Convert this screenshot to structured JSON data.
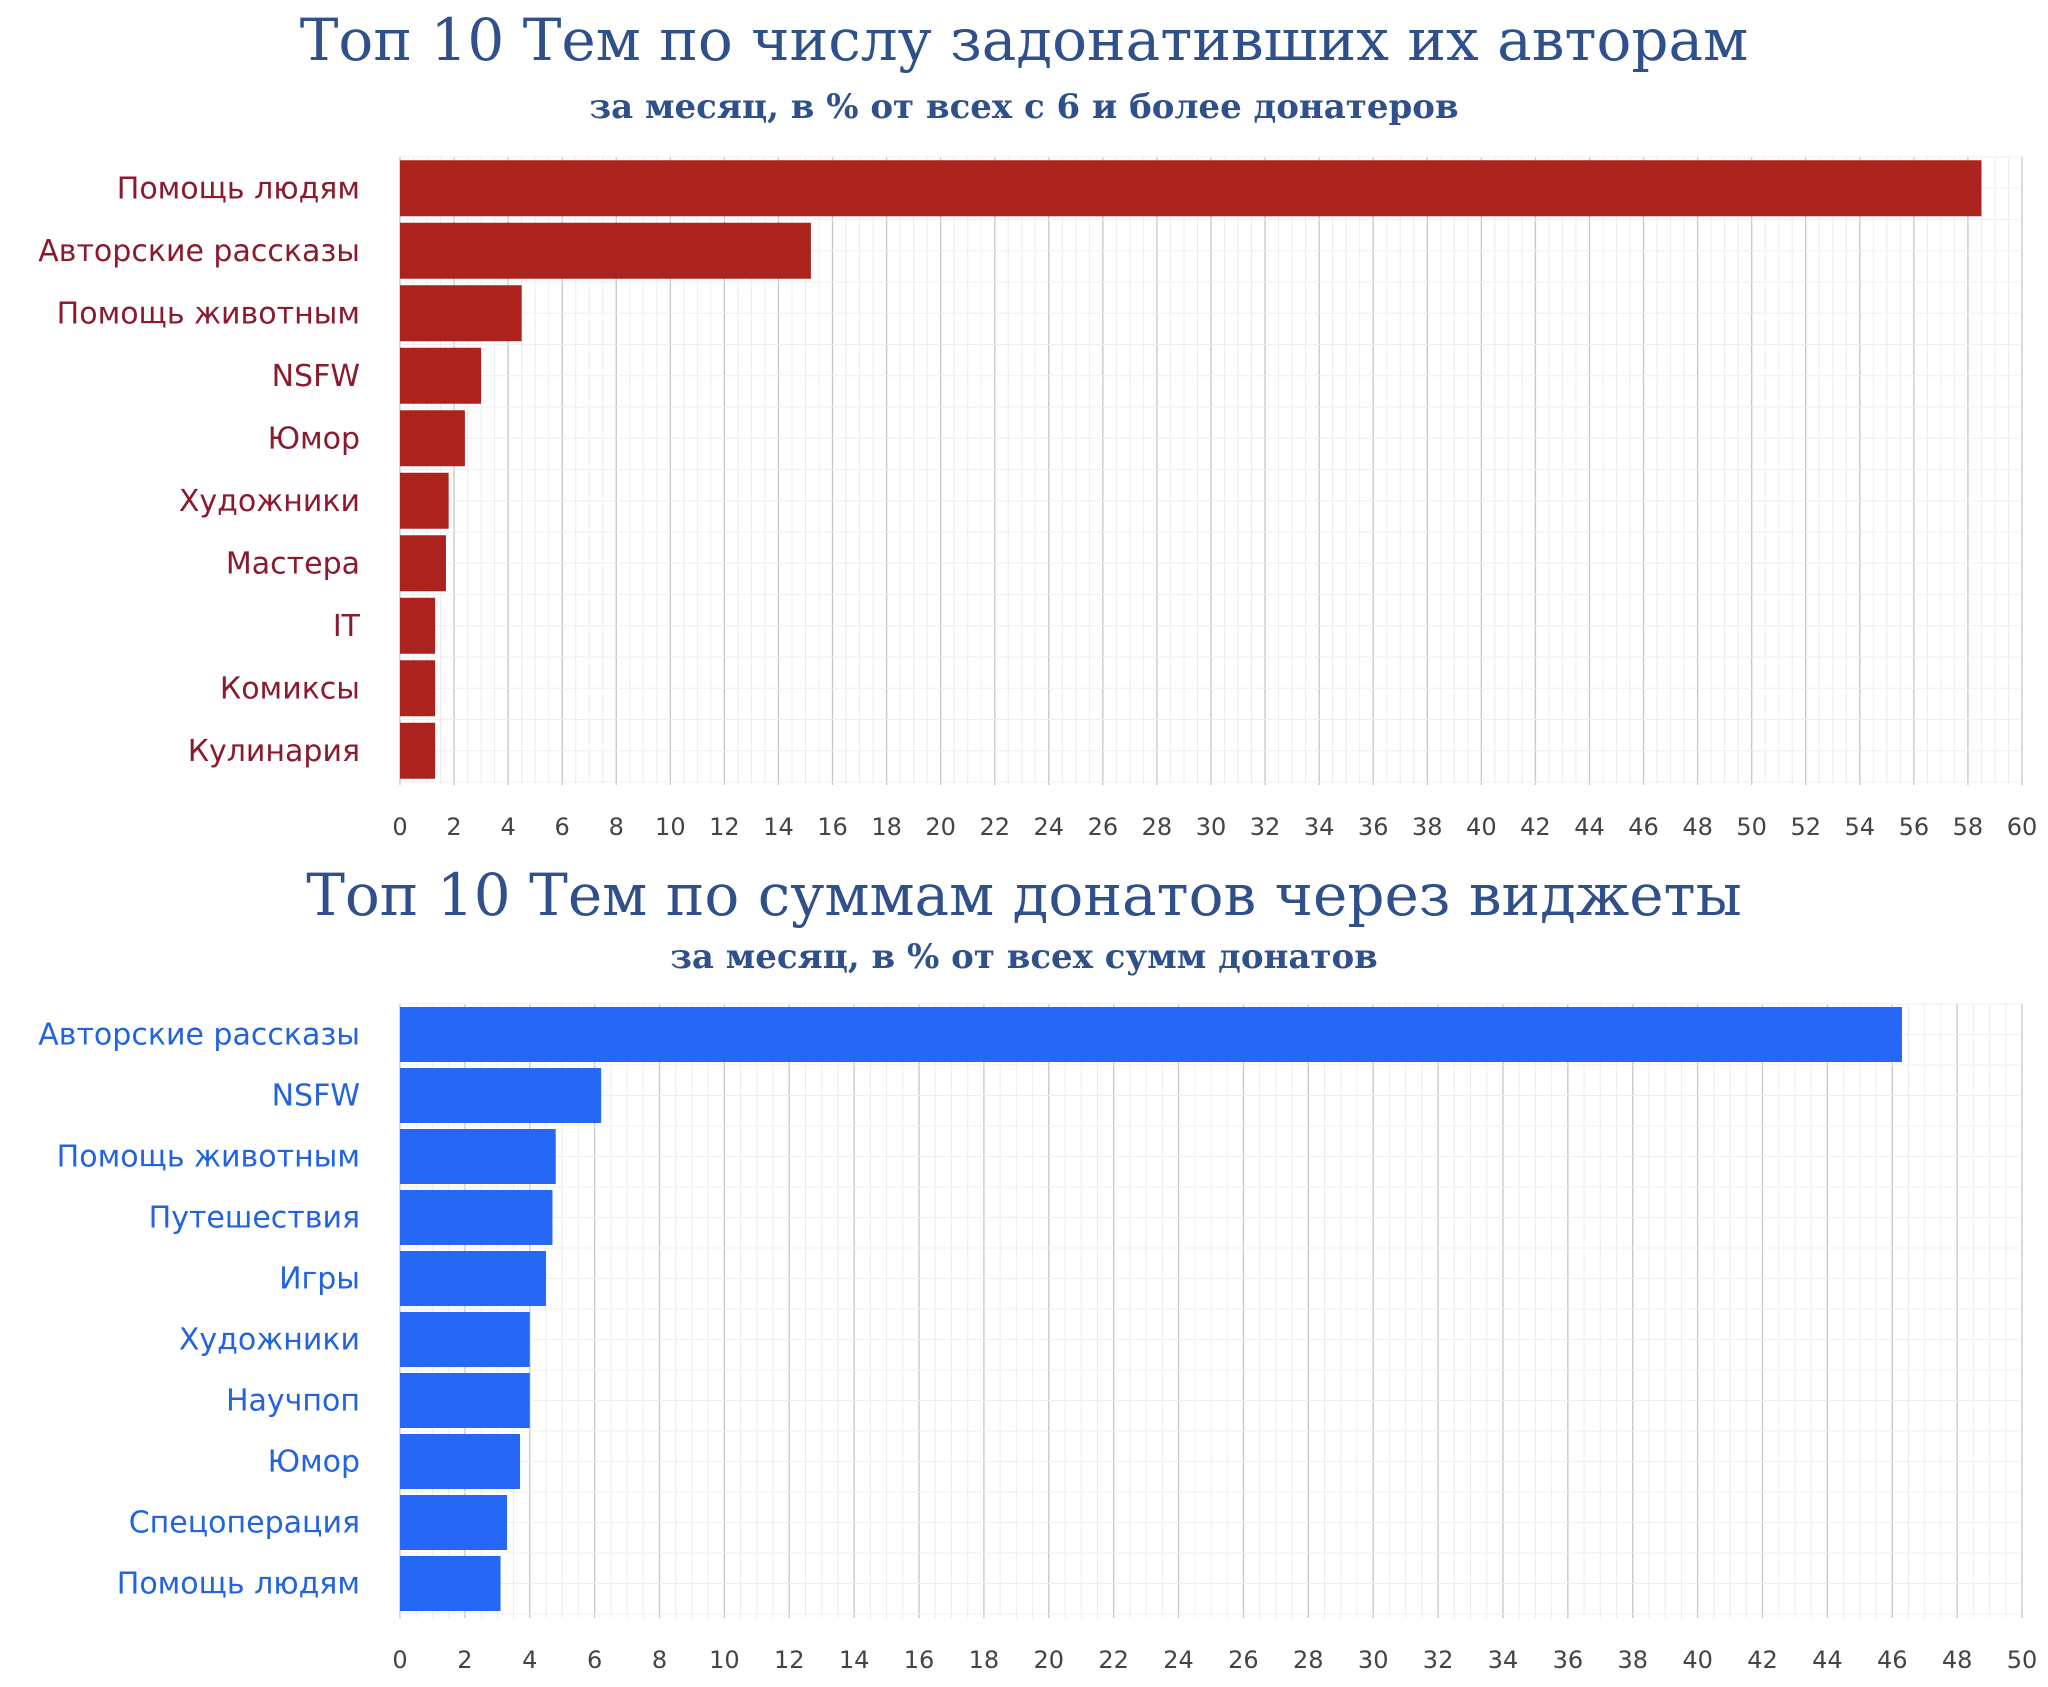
{
  "chart_data": [
    {
      "type": "bar",
      "orientation": "horizontal",
      "title": "Топ 10 Тем по числу задонативших их авторам",
      "subtitle": "за месяц, в % от всех с 6 и более донатеров",
      "categories": [
        "Помощь людям",
        "Авторские рассказы",
        "Помощь животным",
        "NSFW",
        "Юмор",
        "Художники",
        "Мастера",
        "IT",
        "Комиксы",
        "Кулинария"
      ],
      "values": [
        58.5,
        15.2,
        4.5,
        3.0,
        2.4,
        1.8,
        1.7,
        1.3,
        1.3,
        1.3
      ],
      "xlim": [
        0,
        60
      ],
      "xticks": [
        "0",
        "2",
        "4",
        "6",
        "8",
        "10",
        "12",
        "14",
        "16",
        "18",
        "20",
        "22",
        "24",
        "26",
        "28",
        "30",
        "32",
        "34",
        "36",
        "38",
        "40",
        "42",
        "44",
        "46",
        "48",
        "50",
        "52",
        "54",
        "56",
        "58",
        "60"
      ],
      "grid": true,
      "colors": {
        "bar": "#ab231c",
        "label": "#8b1a2e"
      }
    },
    {
      "type": "bar",
      "orientation": "horizontal",
      "title": "Топ 10 Тем по суммам донатов через виджеты",
      "subtitle": "за месяц, в % от всех сумм донатов",
      "categories": [
        "Авторские рассказы",
        "NSFW",
        "Помощь животным",
        "Путешествия",
        "Игры",
        "Художники",
        "Научпоп",
        "Юмор",
        "Спецоперация",
        "Помощь людям"
      ],
      "values": [
        46.3,
        6.2,
        4.8,
        4.7,
        4.5,
        4.0,
        4.0,
        3.7,
        3.3,
        3.1
      ],
      "xlim": [
        0,
        50
      ],
      "xticks": [
        "0",
        "2",
        "4",
        "6",
        "8",
        "10",
        "12",
        "14",
        "16",
        "18",
        "20",
        "22",
        "24",
        "26",
        "28",
        "30",
        "32",
        "34",
        "36",
        "38",
        "40",
        "42",
        "44",
        "46",
        "48",
        "50"
      ],
      "grid": true,
      "colors": {
        "bar": "#2668f5",
        "label": "#2263e0"
      }
    }
  ]
}
